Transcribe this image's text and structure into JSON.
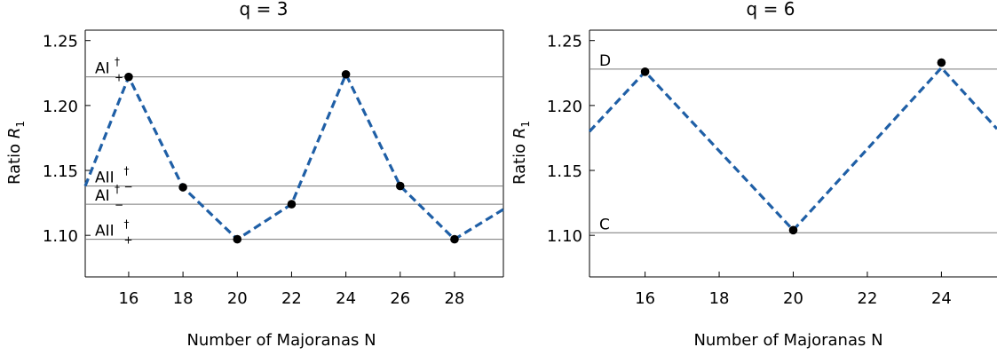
{
  "chart_data": [
    {
      "type": "line",
      "title": "q = 3",
      "xlabel": "Number of Majoranas N",
      "ylabel": "Ratio",
      "ylabel_symbol": "R",
      "ylabel_subscript": "1",
      "xlim": [
        14.4,
        29.8
      ],
      "ylim": [
        1.068,
        1.258
      ],
      "xticks": [
        16,
        18,
        20,
        22,
        24,
        26,
        28
      ],
      "yticks": [
        1.1,
        1.15,
        1.2,
        1.25
      ],
      "ytick_labels": [
        "1.10",
        "1.15",
        "1.20",
        "1.25"
      ],
      "grid": false,
      "series": [
        {
          "style": "dashed",
          "color": "#1f5fa6",
          "x": [
            14.4,
            16,
            18,
            20,
            22,
            24,
            26,
            28,
            29.8
          ],
          "y": [
            1.138,
            1.222,
            1.137,
            1.097,
            1.124,
            1.224,
            1.138,
            1.097,
            1.12
          ]
        }
      ],
      "points": {
        "color": "#000000",
        "x": [
          16,
          18,
          20,
          22,
          24,
          26,
          28
        ],
        "y": [
          1.222,
          1.137,
          1.097,
          1.124,
          1.224,
          1.138,
          1.097
        ]
      },
      "reference_lines": [
        {
          "y": 1.222,
          "base": "AI",
          "sup": "†",
          "sub": "+"
        },
        {
          "y": 1.138,
          "base": "AII",
          "sup": "†",
          "sub": "−"
        },
        {
          "y": 1.124,
          "base": "AI",
          "sup": "†",
          "sub": "−"
        },
        {
          "y": 1.097,
          "base": "AII",
          "sup": "†",
          "sub": "+"
        }
      ]
    },
    {
      "type": "line",
      "title": "q = 6",
      "xlabel": "Number of Majoranas N",
      "ylabel": "Ratio",
      "ylabel_symbol": "R",
      "ylabel_subscript": "1",
      "xlim": [
        14.5,
        25.5
      ],
      "ylim": [
        1.068,
        1.258
      ],
      "xticks": [
        16,
        18,
        20,
        22,
        24
      ],
      "yticks": [
        1.1,
        1.15,
        1.2,
        1.25
      ],
      "ytick_labels": [
        "1.10",
        "1.15",
        "1.20",
        "1.25"
      ],
      "grid": false,
      "series": [
        {
          "style": "dashed",
          "color": "#1f5fa6",
          "x": [
            14.5,
            16,
            20,
            24,
            25.5
          ],
          "y": [
            1.18,
            1.226,
            1.104,
            1.229,
            1.182
          ]
        }
      ],
      "points": {
        "color": "#000000",
        "x": [
          16,
          20,
          24
        ],
        "y": [
          1.226,
          1.104,
          1.233
        ]
      },
      "reference_lines": [
        {
          "y": 1.228,
          "base": "D",
          "sup": "",
          "sub": ""
        },
        {
          "y": 1.102,
          "base": "C",
          "sup": "",
          "sub": ""
        }
      ]
    }
  ]
}
